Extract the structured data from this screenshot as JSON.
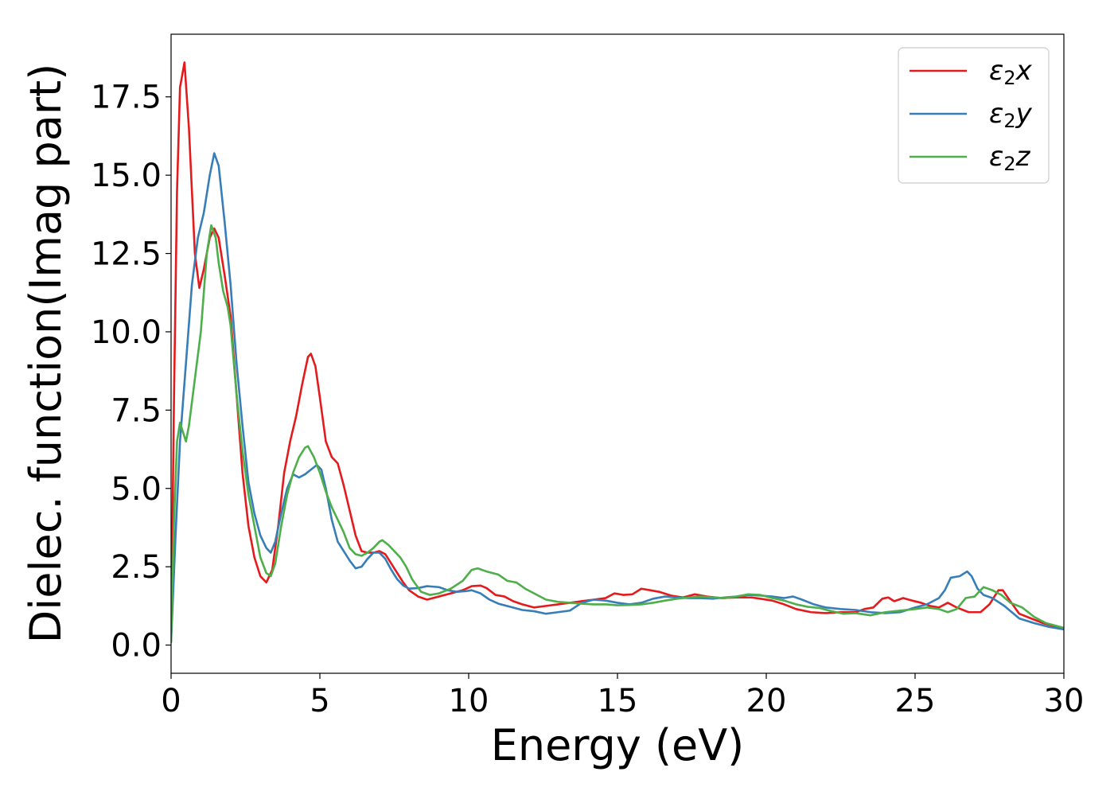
{
  "chart_data": {
    "type": "line",
    "xlabel": "Energy (eV)",
    "ylabel": "Dielec. function(Imag part)",
    "xlim": [
      0,
      30
    ],
    "ylim": [
      -0.9,
      19.5
    ],
    "xticks": [
      0,
      5,
      10,
      15,
      20,
      25,
      30
    ],
    "xtick_labels": [
      "0",
      "5",
      "10",
      "15",
      "20",
      "25",
      "30"
    ],
    "yticks": [
      0.0,
      2.5,
      5.0,
      7.5,
      10.0,
      12.5,
      15.0,
      17.5
    ],
    "ytick_labels": [
      "0.0",
      "2.5",
      "5.0",
      "7.5",
      "10.0",
      "12.5",
      "15.0",
      "17.5"
    ],
    "grid": false,
    "legend_position": "top-right",
    "series": [
      {
        "name": "ε₂x",
        "label_base": "ε",
        "label_sub": "2",
        "label_var": "x",
        "color": "#e41a1c",
        "points": [
          [
            0.0,
            0.2
          ],
          [
            0.1,
            8.0
          ],
          [
            0.2,
            14.5
          ],
          [
            0.3,
            17.8
          ],
          [
            0.45,
            18.6
          ],
          [
            0.6,
            16.5
          ],
          [
            0.8,
            12.5
          ],
          [
            0.95,
            11.4
          ],
          [
            1.1,
            12.0
          ],
          [
            1.3,
            13.0
          ],
          [
            1.45,
            13.3
          ],
          [
            1.6,
            13.0
          ],
          [
            1.8,
            11.8
          ],
          [
            2.0,
            10.5
          ],
          [
            2.2,
            8.0
          ],
          [
            2.4,
            5.5
          ],
          [
            2.6,
            3.8
          ],
          [
            2.8,
            2.8
          ],
          [
            3.0,
            2.2
          ],
          [
            3.2,
            2.0
          ],
          [
            3.4,
            2.4
          ],
          [
            3.6,
            3.8
          ],
          [
            3.8,
            5.5
          ],
          [
            4.0,
            6.5
          ],
          [
            4.2,
            7.3
          ],
          [
            4.4,
            8.3
          ],
          [
            4.6,
            9.2
          ],
          [
            4.7,
            9.3
          ],
          [
            4.85,
            8.9
          ],
          [
            5.0,
            7.9
          ],
          [
            5.2,
            6.5
          ],
          [
            5.4,
            6.0
          ],
          [
            5.6,
            5.8
          ],
          [
            5.8,
            5.1
          ],
          [
            6.0,
            4.3
          ],
          [
            6.2,
            3.5
          ],
          [
            6.4,
            3.0
          ],
          [
            6.6,
            2.95
          ],
          [
            6.8,
            2.95
          ],
          [
            7.0,
            3.0
          ],
          [
            7.2,
            2.9
          ],
          [
            7.4,
            2.6
          ],
          [
            7.6,
            2.3
          ],
          [
            7.8,
            2.0
          ],
          [
            8.0,
            1.75
          ],
          [
            8.3,
            1.55
          ],
          [
            8.6,
            1.45
          ],
          [
            9.0,
            1.55
          ],
          [
            9.4,
            1.65
          ],
          [
            9.8,
            1.75
          ],
          [
            10.1,
            1.88
          ],
          [
            10.4,
            1.9
          ],
          [
            10.6,
            1.82
          ],
          [
            10.9,
            1.6
          ],
          [
            11.2,
            1.55
          ],
          [
            11.5,
            1.4
          ],
          [
            11.8,
            1.3
          ],
          [
            12.2,
            1.2
          ],
          [
            12.6,
            1.25
          ],
          [
            13.0,
            1.3
          ],
          [
            13.4,
            1.35
          ],
          [
            13.8,
            1.4
          ],
          [
            14.2,
            1.45
          ],
          [
            14.6,
            1.5
          ],
          [
            14.9,
            1.65
          ],
          [
            15.2,
            1.6
          ],
          [
            15.5,
            1.62
          ],
          [
            15.8,
            1.8
          ],
          [
            16.1,
            1.75
          ],
          [
            16.4,
            1.7
          ],
          [
            16.8,
            1.58
          ],
          [
            17.2,
            1.52
          ],
          [
            17.6,
            1.62
          ],
          [
            18.0,
            1.55
          ],
          [
            18.5,
            1.5
          ],
          [
            19.0,
            1.52
          ],
          [
            19.5,
            1.52
          ],
          [
            19.8,
            1.48
          ],
          [
            20.2,
            1.42
          ],
          [
            20.6,
            1.3
          ],
          [
            21.0,
            1.15
          ],
          [
            21.5,
            1.05
          ],
          [
            22.0,
            1.02
          ],
          [
            22.5,
            1.05
          ],
          [
            23.0,
            1.05
          ],
          [
            23.3,
            1.15
          ],
          [
            23.6,
            1.2
          ],
          [
            23.9,
            1.48
          ],
          [
            24.1,
            1.52
          ],
          [
            24.3,
            1.4
          ],
          [
            24.6,
            1.5
          ],
          [
            24.9,
            1.42
          ],
          [
            25.2,
            1.35
          ],
          [
            25.5,
            1.25
          ],
          [
            25.8,
            1.2
          ],
          [
            26.1,
            1.35
          ],
          [
            26.4,
            1.2
          ],
          [
            26.8,
            1.05
          ],
          [
            27.2,
            1.05
          ],
          [
            27.5,
            1.3
          ],
          [
            27.8,
            1.75
          ],
          [
            27.95,
            1.75
          ],
          [
            28.2,
            1.4
          ],
          [
            28.5,
            1.0
          ],
          [
            28.9,
            0.85
          ],
          [
            29.3,
            0.7
          ],
          [
            29.7,
            0.6
          ],
          [
            30.0,
            0.52
          ]
        ]
      },
      {
        "name": "ε₂y",
        "label_base": "ε",
        "label_sub": "2",
        "label_var": "y",
        "color": "#377eb8",
        "points": [
          [
            0.0,
            0.1
          ],
          [
            0.15,
            3.5
          ],
          [
            0.3,
            6.5
          ],
          [
            0.5,
            9.0
          ],
          [
            0.7,
            11.5
          ],
          [
            0.9,
            13.0
          ],
          [
            1.1,
            13.8
          ],
          [
            1.3,
            15.0
          ],
          [
            1.45,
            15.7
          ],
          [
            1.6,
            15.3
          ],
          [
            1.8,
            13.5
          ],
          [
            2.0,
            11.5
          ],
          [
            2.2,
            9.0
          ],
          [
            2.4,
            7.0
          ],
          [
            2.6,
            5.2
          ],
          [
            2.8,
            4.2
          ],
          [
            3.0,
            3.5
          ],
          [
            3.2,
            3.1
          ],
          [
            3.35,
            2.95
          ],
          [
            3.5,
            3.3
          ],
          [
            3.7,
            4.2
          ],
          [
            3.9,
            5.0
          ],
          [
            4.1,
            5.45
          ],
          [
            4.3,
            5.35
          ],
          [
            4.5,
            5.45
          ],
          [
            4.7,
            5.6
          ],
          [
            4.9,
            5.75
          ],
          [
            5.05,
            5.6
          ],
          [
            5.2,
            5.0
          ],
          [
            5.4,
            4.0
          ],
          [
            5.6,
            3.3
          ],
          [
            5.8,
            3.0
          ],
          [
            6.0,
            2.7
          ],
          [
            6.2,
            2.45
          ],
          [
            6.4,
            2.5
          ],
          [
            6.6,
            2.75
          ],
          [
            6.8,
            2.95
          ],
          [
            7.0,
            2.95
          ],
          [
            7.2,
            2.75
          ],
          [
            7.4,
            2.4
          ],
          [
            7.6,
            2.1
          ],
          [
            7.8,
            1.9
          ],
          [
            8.0,
            1.8
          ],
          [
            8.3,
            1.82
          ],
          [
            8.6,
            1.88
          ],
          [
            9.0,
            1.85
          ],
          [
            9.3,
            1.75
          ],
          [
            9.6,
            1.7
          ],
          [
            9.9,
            1.72
          ],
          [
            10.1,
            1.75
          ],
          [
            10.4,
            1.65
          ],
          [
            10.7,
            1.45
          ],
          [
            11.0,
            1.32
          ],
          [
            11.4,
            1.22
          ],
          [
            11.8,
            1.12
          ],
          [
            12.2,
            1.08
          ],
          [
            12.6,
            1.0
          ],
          [
            13.0,
            1.05
          ],
          [
            13.4,
            1.1
          ],
          [
            13.8,
            1.35
          ],
          [
            14.2,
            1.45
          ],
          [
            14.6,
            1.42
          ],
          [
            15.0,
            1.35
          ],
          [
            15.4,
            1.3
          ],
          [
            15.8,
            1.35
          ],
          [
            16.2,
            1.48
          ],
          [
            16.6,
            1.55
          ],
          [
            17.0,
            1.52
          ],
          [
            17.4,
            1.5
          ],
          [
            17.8,
            1.5
          ],
          [
            18.2,
            1.48
          ],
          [
            18.6,
            1.52
          ],
          [
            19.0,
            1.55
          ],
          [
            19.4,
            1.6
          ],
          [
            19.8,
            1.58
          ],
          [
            20.2,
            1.55
          ],
          [
            20.6,
            1.5
          ],
          [
            20.9,
            1.55
          ],
          [
            21.2,
            1.45
          ],
          [
            21.6,
            1.3
          ],
          [
            22.0,
            1.2
          ],
          [
            22.5,
            1.15
          ],
          [
            23.0,
            1.12
          ],
          [
            23.5,
            1.05
          ],
          [
            24.0,
            1.02
          ],
          [
            24.5,
            1.05
          ],
          [
            25.0,
            1.2
          ],
          [
            25.4,
            1.3
          ],
          [
            25.8,
            1.5
          ],
          [
            26.0,
            1.75
          ],
          [
            26.2,
            2.15
          ],
          [
            26.5,
            2.2
          ],
          [
            26.75,
            2.35
          ],
          [
            26.9,
            2.2
          ],
          [
            27.1,
            1.8
          ],
          [
            27.3,
            1.6
          ],
          [
            27.6,
            1.5
          ],
          [
            28.0,
            1.25
          ],
          [
            28.5,
            0.85
          ],
          [
            29.0,
            0.7
          ],
          [
            29.5,
            0.58
          ],
          [
            30.0,
            0.5
          ]
        ]
      },
      {
        "name": "ε₂z",
        "label_base": "ε",
        "label_sub": "2",
        "label_var": "z",
        "color": "#4daf4a",
        "points": [
          [
            0.0,
            0.1
          ],
          [
            0.1,
            4.0
          ],
          [
            0.2,
            6.5
          ],
          [
            0.3,
            7.1
          ],
          [
            0.4,
            6.8
          ],
          [
            0.5,
            6.5
          ],
          [
            0.6,
            7.0
          ],
          [
            0.8,
            8.5
          ],
          [
            1.0,
            10.0
          ],
          [
            1.2,
            12.5
          ],
          [
            1.35,
            13.4
          ],
          [
            1.5,
            13.0
          ],
          [
            1.6,
            12.2
          ],
          [
            1.75,
            11.3
          ],
          [
            1.9,
            10.8
          ],
          [
            2.0,
            10.2
          ],
          [
            2.2,
            8.0
          ],
          [
            2.4,
            6.2
          ],
          [
            2.6,
            4.8
          ],
          [
            2.8,
            3.8
          ],
          [
            3.0,
            2.8
          ],
          [
            3.2,
            2.3
          ],
          [
            3.35,
            2.2
          ],
          [
            3.5,
            2.6
          ],
          [
            3.7,
            3.8
          ],
          [
            3.9,
            4.8
          ],
          [
            4.1,
            5.5
          ],
          [
            4.3,
            6.0
          ],
          [
            4.5,
            6.3
          ],
          [
            4.6,
            6.35
          ],
          [
            4.8,
            6.0
          ],
          [
            5.0,
            5.5
          ],
          [
            5.2,
            4.9
          ],
          [
            5.4,
            4.4
          ],
          [
            5.6,
            4.0
          ],
          [
            5.8,
            3.6
          ],
          [
            6.0,
            3.1
          ],
          [
            6.2,
            2.9
          ],
          [
            6.4,
            2.85
          ],
          [
            6.6,
            2.95
          ],
          [
            6.8,
            3.1
          ],
          [
            7.0,
            3.3
          ],
          [
            7.1,
            3.35
          ],
          [
            7.3,
            3.2
          ],
          [
            7.5,
            3.0
          ],
          [
            7.7,
            2.8
          ],
          [
            7.9,
            2.5
          ],
          [
            8.1,
            2.1
          ],
          [
            8.4,
            1.7
          ],
          [
            8.7,
            1.6
          ],
          [
            9.0,
            1.65
          ],
          [
            9.4,
            1.8
          ],
          [
            9.8,
            2.05
          ],
          [
            10.1,
            2.4
          ],
          [
            10.3,
            2.45
          ],
          [
            10.6,
            2.35
          ],
          [
            11.0,
            2.25
          ],
          [
            11.3,
            2.05
          ],
          [
            11.6,
            2.0
          ],
          [
            11.9,
            1.8
          ],
          [
            12.2,
            1.65
          ],
          [
            12.6,
            1.45
          ],
          [
            13.0,
            1.38
          ],
          [
            13.4,
            1.35
          ],
          [
            13.8,
            1.32
          ],
          [
            14.2,
            1.3
          ],
          [
            14.6,
            1.3
          ],
          [
            15.0,
            1.27
          ],
          [
            15.4,
            1.28
          ],
          [
            15.8,
            1.3
          ],
          [
            16.2,
            1.35
          ],
          [
            16.6,
            1.42
          ],
          [
            17.0,
            1.48
          ],
          [
            17.4,
            1.52
          ],
          [
            17.8,
            1.55
          ],
          [
            18.2,
            1.52
          ],
          [
            18.6,
            1.5
          ],
          [
            19.0,
            1.55
          ],
          [
            19.4,
            1.62
          ],
          [
            19.8,
            1.6
          ],
          [
            20.2,
            1.5
          ],
          [
            20.6,
            1.42
          ],
          [
            21.0,
            1.3
          ],
          [
            21.4,
            1.22
          ],
          [
            21.8,
            1.18
          ],
          [
            22.2,
            1.08
          ],
          [
            22.6,
            1.0
          ],
          [
            23.0,
            1.02
          ],
          [
            23.5,
            0.95
          ],
          [
            24.0,
            1.05
          ],
          [
            24.5,
            1.1
          ],
          [
            25.0,
            1.15
          ],
          [
            25.4,
            1.2
          ],
          [
            25.8,
            1.15
          ],
          [
            26.1,
            1.05
          ],
          [
            26.4,
            1.15
          ],
          [
            26.7,
            1.5
          ],
          [
            27.0,
            1.55
          ],
          [
            27.3,
            1.85
          ],
          [
            27.6,
            1.75
          ],
          [
            27.9,
            1.6
          ],
          [
            28.2,
            1.35
          ],
          [
            28.6,
            1.2
          ],
          [
            29.0,
            0.9
          ],
          [
            29.4,
            0.7
          ],
          [
            29.8,
            0.6
          ],
          [
            30.0,
            0.55
          ]
        ]
      }
    ]
  }
}
